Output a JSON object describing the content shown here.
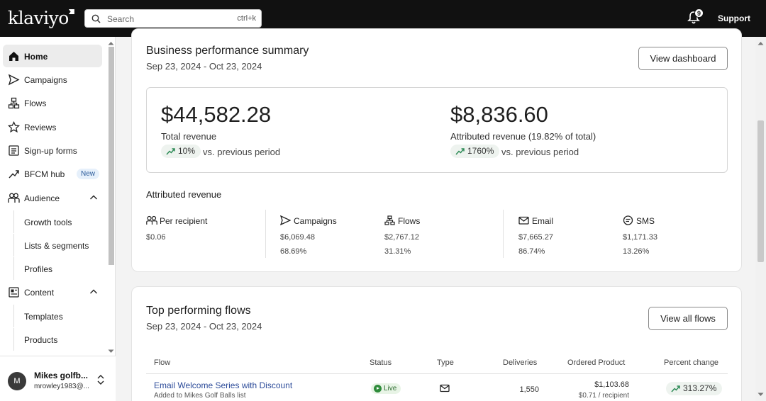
{
  "topbar": {
    "logo": "klaviyo",
    "search_placeholder": "Search",
    "search_shortcut": "ctrl+k",
    "notification_count": "9",
    "support_label": "Support"
  },
  "sidebar": {
    "items": [
      {
        "label": "Home",
        "icon": "home-icon",
        "active": true
      },
      {
        "label": "Campaigns",
        "icon": "send-icon"
      },
      {
        "label": "Flows",
        "icon": "flows-icon"
      },
      {
        "label": "Reviews",
        "icon": "star-icon"
      },
      {
        "label": "Sign-up forms",
        "icon": "form-icon"
      },
      {
        "label": "BFCM hub",
        "icon": "trend-icon",
        "badge": "New"
      },
      {
        "label": "Audience",
        "icon": "audience-icon",
        "expanded": true
      },
      {
        "label": "Content",
        "icon": "content-icon",
        "expanded": true
      }
    ],
    "audience_sub": [
      "Growth tools",
      "Lists & segments",
      "Profiles"
    ],
    "content_sub": [
      "Templates",
      "Products"
    ],
    "account": {
      "initial": "M",
      "name": "Mikes golfb...",
      "email": "mrowley1983@..."
    }
  },
  "summary": {
    "title": "Business performance summary",
    "date_range": "Sep 23, 2024 - Oct 23, 2024",
    "view_button": "View dashboard",
    "total_revenue": {
      "value": "$44,582.28",
      "label": "Total revenue",
      "change": "10%",
      "change_text": "vs. previous period"
    },
    "attributed_revenue": {
      "value": "$8,836.60",
      "label": "Attributed revenue (19.82% of total)",
      "change": "1760%",
      "change_text": "vs. previous period"
    },
    "attributed_title": "Attributed revenue",
    "metrics": {
      "per_recipient": {
        "label": "Per recipient",
        "value": "$0.06"
      },
      "campaigns": {
        "label": "Campaigns",
        "value": "$6,069.48",
        "pct": "68.69%"
      },
      "flows": {
        "label": "Flows",
        "value": "$2,767.12",
        "pct": "31.31%"
      },
      "email": {
        "label": "Email",
        "value": "$7,665.27",
        "pct": "86.74%"
      },
      "sms": {
        "label": "SMS",
        "value": "$1,171.33",
        "pct": "13.26%"
      }
    }
  },
  "flows": {
    "title": "Top performing flows",
    "date_range": "Sep 23, 2024 - Oct 23, 2024",
    "view_button": "View all flows",
    "headers": {
      "flow": "Flow",
      "status": "Status",
      "type": "Type",
      "deliveries": "Deliveries",
      "ordered": "Ordered Product",
      "change": "Percent change"
    },
    "rows": [
      {
        "name": "Email Welcome Series with Discount",
        "trigger": "Added to Mikes Golf Balls list",
        "status": "Live",
        "type": "email-icon",
        "deliveries": "1,550",
        "ordered": "$1,103.68",
        "per_recipient": "$0.71 / recipient",
        "change": "313.27%"
      }
    ]
  },
  "colors": {
    "topbar": "#111111",
    "link": "#2d4c9a",
    "positive_pill": "#eef3ef",
    "live_green": "#2e8b3a",
    "trend_green": "#2e8b57"
  }
}
